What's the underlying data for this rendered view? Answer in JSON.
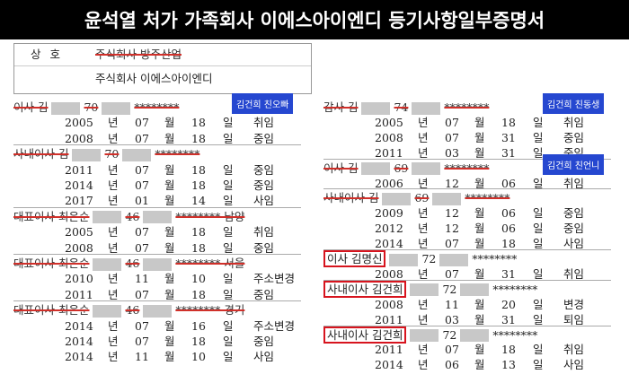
{
  "header": {
    "title": "윤석열 처가 가족회사 이에스아이엔디 등기사항일부증명서"
  },
  "trade_name": {
    "label": "상 호",
    "old": "주식회사 방주산업",
    "current": "주식회사 이에스아이엔디"
  },
  "columns": [
    {
      "entries": [
        {
          "head": [
            "이사 김",
            "70",
            "********"
          ],
          "style": "struck",
          "note": "김건희 친오빠",
          "rows": [
            [
              "2005",
              "년",
              "07",
              "월",
              "18",
              "일",
              "취임"
            ],
            [
              "2008",
              "년",
              "07",
              "월",
              "18",
              "일",
              "중임"
            ]
          ]
        },
        {
          "head": [
            "사내이사 김",
            "70",
            "********"
          ],
          "style": "struck",
          "rows": [
            [
              "2011",
              "년",
              "07",
              "월",
              "18",
              "일",
              "중임"
            ],
            [
              "2014",
              "년",
              "07",
              "월",
              "18",
              "일",
              "중임"
            ],
            [
              "2017",
              "년",
              "01",
              "월",
              "14",
              "일",
              "사임"
            ]
          ]
        },
        {
          "head": [
            "대표이사 최은순",
            "46",
            "******** 남양"
          ],
          "style": "struck",
          "rows": [
            [
              "2005",
              "년",
              "07",
              "월",
              "18",
              "일",
              "취임"
            ],
            [
              "2008",
              "년",
              "07",
              "월",
              "18",
              "일",
              "중임"
            ]
          ]
        },
        {
          "head": [
            "대표이사 최은순",
            "46",
            "******** 서울"
          ],
          "style": "struck",
          "rows": [
            [
              "2010",
              "년",
              "11",
              "월",
              "10",
              "일",
              "주소변경"
            ],
            [
              "2011",
              "년",
              "07",
              "월",
              "18",
              "일",
              "중임"
            ]
          ]
        },
        {
          "head": [
            "대표이사 최은순",
            "46",
            "******** 경기"
          ],
          "style": "struck",
          "rows": [
            [
              "2014",
              "년",
              "07",
              "월",
              "16",
              "일",
              "주소변경"
            ],
            [
              "2014",
              "년",
              "07",
              "월",
              "18",
              "일",
              "중임"
            ],
            [
              "2014",
              "년",
              "11",
              "월",
              "10",
              "일",
              "사임"
            ]
          ]
        }
      ]
    },
    {
      "entries": [
        {
          "head": [
            "감사 김",
            "74",
            "********"
          ],
          "style": "struck",
          "note": "김건희 친동생",
          "rows": [
            [
              "2005",
              "년",
              "07",
              "월",
              "18",
              "일",
              "취임"
            ],
            [
              "2008",
              "년",
              "07",
              "월",
              "31",
              "일",
              "중임"
            ],
            [
              "2011",
              "년",
              "03",
              "월",
              "31",
              "일",
              "중임"
            ]
          ]
        },
        {
          "head": [
            "이사 김",
            "69",
            "********"
          ],
          "style": "struck",
          "note": "김건희 친언니",
          "rows": [
            [
              "2006",
              "년",
              "12",
              "월",
              "06",
              "일",
              "취임"
            ]
          ]
        },
        {
          "head": [
            "사내이사 김",
            "69",
            "********"
          ],
          "style": "struck",
          "rows": [
            [
              "2009",
              "년",
              "12",
              "월",
              "06",
              "일",
              "중임"
            ],
            [
              "2012",
              "년",
              "12",
              "월",
              "06",
              "일",
              "중임"
            ],
            [
              "2014",
              "년",
              "07",
              "월",
              "18",
              "일",
              "사임"
            ]
          ]
        },
        {
          "head": [
            "이사 김명신",
            "72",
            "********"
          ],
          "style": "boxed",
          "rows": [
            [
              "2008",
              "년",
              "07",
              "월",
              "31",
              "일",
              "취임"
            ]
          ]
        },
        {
          "head": [
            "사내이사 김건희",
            "72",
            "********"
          ],
          "style": "boxed",
          "rows": [
            [
              "2008",
              "년",
              "11",
              "월",
              "20",
              "일",
              "변경"
            ],
            [
              "2011",
              "년",
              "03",
              "월",
              "31",
              "일",
              "퇴임"
            ]
          ]
        },
        {
          "head": [
            "사내이사 김건희",
            "72",
            "********"
          ],
          "style": "boxed",
          "rows": [
            [
              "2011",
              "년",
              "07",
              "월",
              "18",
              "일",
              "취임"
            ],
            [
              "2014",
              "년",
              "06",
              "월",
              "13",
              "일",
              "사임"
            ]
          ]
        }
      ]
    }
  ]
}
